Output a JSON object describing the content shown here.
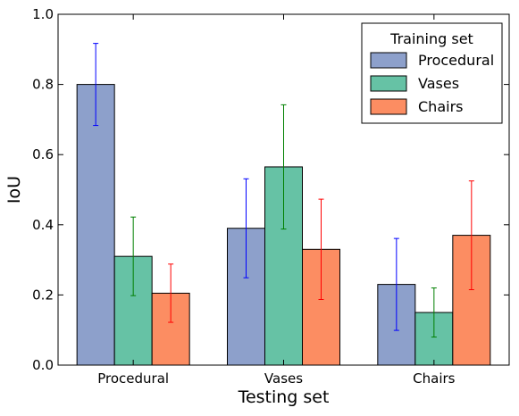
{
  "chart_data": {
    "type": "bar",
    "categories": [
      "Procedural",
      "Vases",
      "Chairs"
    ],
    "xlabel": "Testing set",
    "ylabel": "IoU",
    "ylim": [
      0.0,
      1.0
    ],
    "yticks": [
      "0.0",
      "0.2",
      "0.4",
      "0.6",
      "0.8",
      "1.0"
    ],
    "grid": false,
    "legend": {
      "title": "Training set",
      "placement": "top-right"
    },
    "series": [
      {
        "name": "Procedural",
        "color": "#8da0cb",
        "error_color": "#0000ff",
        "values": [
          0.8,
          0.39,
          0.23
        ],
        "errors": [
          0.117,
          0.141,
          0.131
        ]
      },
      {
        "name": "Vases",
        "color": "#66c2a5",
        "error_color": "#008000",
        "values": [
          0.31,
          0.565,
          0.15
        ],
        "errors": [
          0.112,
          0.177,
          0.07
        ]
      },
      {
        "name": "Chairs",
        "color": "#fc8d62",
        "error_color": "#ff0000",
        "values": [
          0.205,
          0.33,
          0.37
        ],
        "errors": [
          0.083,
          0.143,
          0.155
        ]
      }
    ]
  }
}
